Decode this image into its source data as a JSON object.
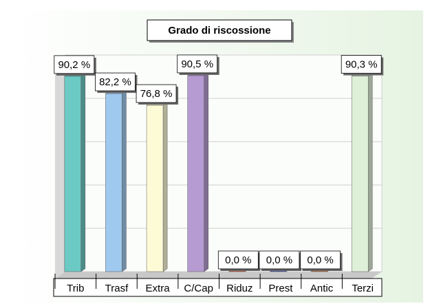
{
  "chart_data": {
    "type": "bar3d",
    "title": "Grado di riscossione",
    "categories": [
      "Trib",
      "Trasf",
      "Extra",
      "C/Cap",
      "Riduz",
      "Prest",
      "Antic",
      "Terzi"
    ],
    "values": [
      90.2,
      82.2,
      76.8,
      90.5,
      0,
      0,
      0,
      90.3
    ],
    "value_labels": [
      "90,2 %",
      "82,2 %",
      "76,8 %",
      "90,5 %",
      "0,0 %",
      "0,0 %",
      "0,0 %",
      "90,3 %"
    ],
    "colors": [
      "#6ccac4",
      "#9fc9ee",
      "#fdfbd6",
      "#b59bd2",
      "#e0603a",
      "#3b5bc8",
      "#e07030",
      "#dff0d8"
    ],
    "ylim": [
      0,
      100
    ],
    "yticks": [
      0,
      20,
      40,
      60,
      80,
      100
    ],
    "grid": true
  }
}
